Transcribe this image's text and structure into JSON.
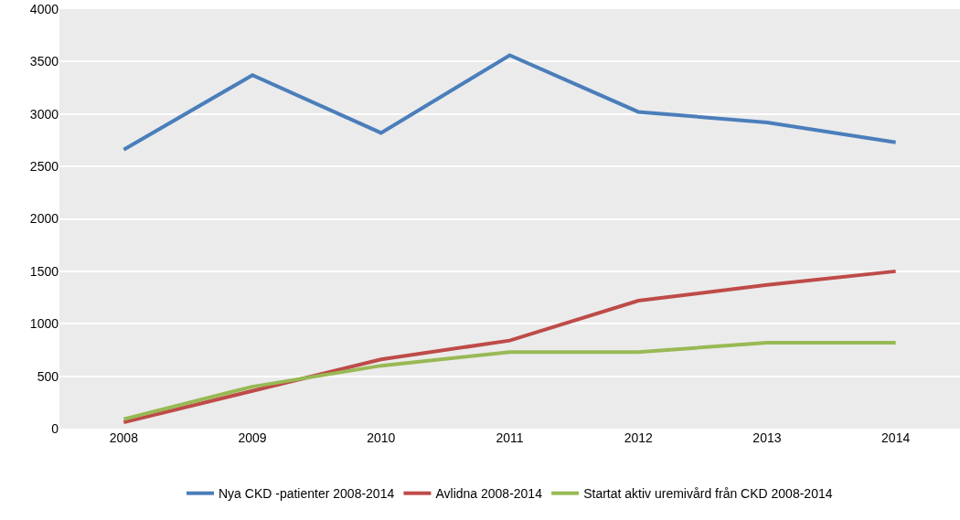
{
  "chart_data": {
    "type": "line",
    "categories": [
      "2008",
      "2009",
      "2010",
      "2011",
      "2012",
      "2013",
      "2014"
    ],
    "series": [
      {
        "name": "Nya CKD -patienter 2008-2014",
        "color": "#4a7ebb",
        "values": [
          2660,
          3370,
          2820,
          3560,
          3020,
          2920,
          2730
        ]
      },
      {
        "name": "Avlidna 2008-2014",
        "color": "#be4b48",
        "values": [
          60,
          360,
          660,
          840,
          1220,
          1370,
          1500
        ]
      },
      {
        "name": "Startat aktiv uremivård från CKD 2008-2014",
        "color": "#98b954",
        "values": [
          90,
          400,
          600,
          730,
          730,
          820,
          820
        ]
      }
    ],
    "ylim": [
      0,
      4000
    ],
    "yticks": [
      0,
      500,
      1000,
      1500,
      2000,
      2500,
      3000,
      3500,
      4000
    ],
    "grid": "y",
    "legend": "bottom",
    "marker": "none",
    "line_style": "solid"
  }
}
